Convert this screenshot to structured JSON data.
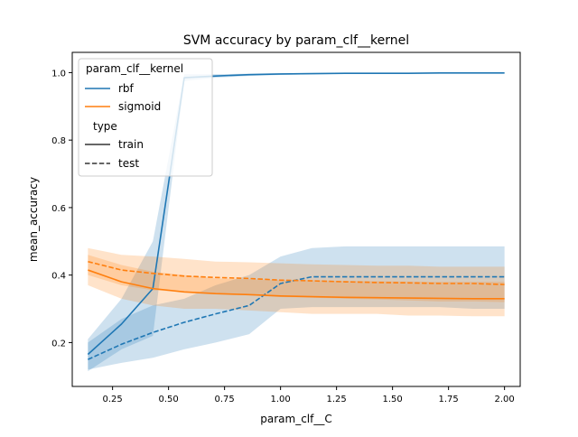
{
  "chart_data": {
    "type": "line",
    "title": "SVM accuracy by param_clf__kernel",
    "xlabel": "param_clf__C",
    "ylabel": "mean_accuracy",
    "xlim": [
      0.07,
      2.07
    ],
    "ylim": [
      0.07,
      1.06
    ],
    "xticks": [
      "0.25",
      "0.50",
      "0.75",
      "1.00",
      "1.25",
      "1.50",
      "1.75",
      "2.00"
    ],
    "xtick_values": [
      0.25,
      0.5,
      0.75,
      1.0,
      1.25,
      1.5,
      1.75,
      2.0
    ],
    "yticks": [
      "0.2",
      "0.4",
      "0.6",
      "0.8",
      "1.0"
    ],
    "ytick_values": [
      0.2,
      0.4,
      0.6,
      0.8,
      1.0
    ],
    "grid": false,
    "legend": {
      "placement": "upper-left",
      "hue_title": "param_clf__kernel",
      "style_title": "type",
      "hue_entries": [
        {
          "label": "rbf",
          "color": "#1f77b4"
        },
        {
          "label": "sigmoid",
          "color": "#ff7f0e"
        }
      ],
      "style_entries": [
        {
          "label": "train",
          "dash": "solid"
        },
        {
          "label": "test",
          "dash": "dashed"
        }
      ]
    },
    "series": [
      {
        "kernel": "rbf",
        "type": "train",
        "color": "#1f77b4",
        "x": [
          0.14,
          0.29,
          0.43,
          0.57,
          0.71,
          0.86,
          1.0,
          1.14,
          1.29,
          1.43,
          1.57,
          1.71,
          1.86,
          2.0
        ],
        "y": [
          0.165,
          0.255,
          0.36,
          0.985,
          0.99,
          0.994,
          0.996,
          0.997,
          0.998,
          0.998,
          0.998,
          0.999,
          0.999,
          0.999
        ],
        "ci_low": [
          0.115,
          0.18,
          0.22,
          0.975,
          0.985,
          0.99,
          0.993,
          0.995,
          0.996,
          0.997,
          0.997,
          0.998,
          0.998,
          0.998
        ],
        "ci_high": [
          0.21,
          0.33,
          0.5,
          0.995,
          0.995,
          0.997,
          0.998,
          0.999,
          0.999,
          0.999,
          0.999,
          1.0,
          1.0,
          1.0
        ]
      },
      {
        "kernel": "rbf",
        "type": "test",
        "color": "#1f77b4",
        "x": [
          0.14,
          0.29,
          0.43,
          0.57,
          0.71,
          0.86,
          1.0,
          1.14,
          1.29,
          1.43,
          1.57,
          1.71,
          1.86,
          2.0
        ],
        "y": [
          0.15,
          0.195,
          0.23,
          0.26,
          0.285,
          0.31,
          0.375,
          0.395,
          0.395,
          0.395,
          0.395,
          0.395,
          0.395,
          0.395
        ],
        "ci_low": [
          0.12,
          0.14,
          0.155,
          0.18,
          0.2,
          0.225,
          0.3,
          0.305,
          0.305,
          0.305,
          0.305,
          0.305,
          0.3,
          0.3
        ],
        "ci_high": [
          0.2,
          0.27,
          0.31,
          0.33,
          0.37,
          0.4,
          0.455,
          0.48,
          0.485,
          0.485,
          0.485,
          0.485,
          0.485,
          0.485
        ]
      },
      {
        "kernel": "sigmoid",
        "type": "train",
        "color": "#ff7f0e",
        "x": [
          0.14,
          0.29,
          0.43,
          0.57,
          0.71,
          0.86,
          1.0,
          1.14,
          1.29,
          1.43,
          1.57,
          1.71,
          1.86,
          2.0
        ],
        "y": [
          0.415,
          0.38,
          0.36,
          0.35,
          0.345,
          0.342,
          0.338,
          0.336,
          0.334,
          0.333,
          0.332,
          0.331,
          0.33,
          0.33
        ],
        "ci_low": [
          0.37,
          0.33,
          0.31,
          0.3,
          0.3,
          0.295,
          0.29,
          0.285,
          0.285,
          0.285,
          0.28,
          0.28,
          0.278,
          0.278
        ],
        "ci_high": [
          0.46,
          0.43,
          0.41,
          0.4,
          0.39,
          0.388,
          0.385,
          0.385,
          0.383,
          0.382,
          0.381,
          0.38,
          0.38,
          0.38
        ]
      },
      {
        "kernel": "sigmoid",
        "type": "test",
        "color": "#ff7f0e",
        "x": [
          0.14,
          0.29,
          0.43,
          0.57,
          0.71,
          0.86,
          1.0,
          1.14,
          1.29,
          1.43,
          1.57,
          1.71,
          1.86,
          2.0
        ],
        "y": [
          0.44,
          0.415,
          0.405,
          0.397,
          0.393,
          0.39,
          0.385,
          0.383,
          0.38,
          0.378,
          0.377,
          0.375,
          0.375,
          0.372
        ],
        "ci_low": [
          0.4,
          0.37,
          0.355,
          0.35,
          0.345,
          0.34,
          0.335,
          0.333,
          0.33,
          0.328,
          0.325,
          0.322,
          0.322,
          0.32
        ],
        "ci_high": [
          0.48,
          0.46,
          0.455,
          0.448,
          0.44,
          0.438,
          0.435,
          0.432,
          0.43,
          0.428,
          0.428,
          0.425,
          0.425,
          0.425
        ]
      }
    ]
  }
}
